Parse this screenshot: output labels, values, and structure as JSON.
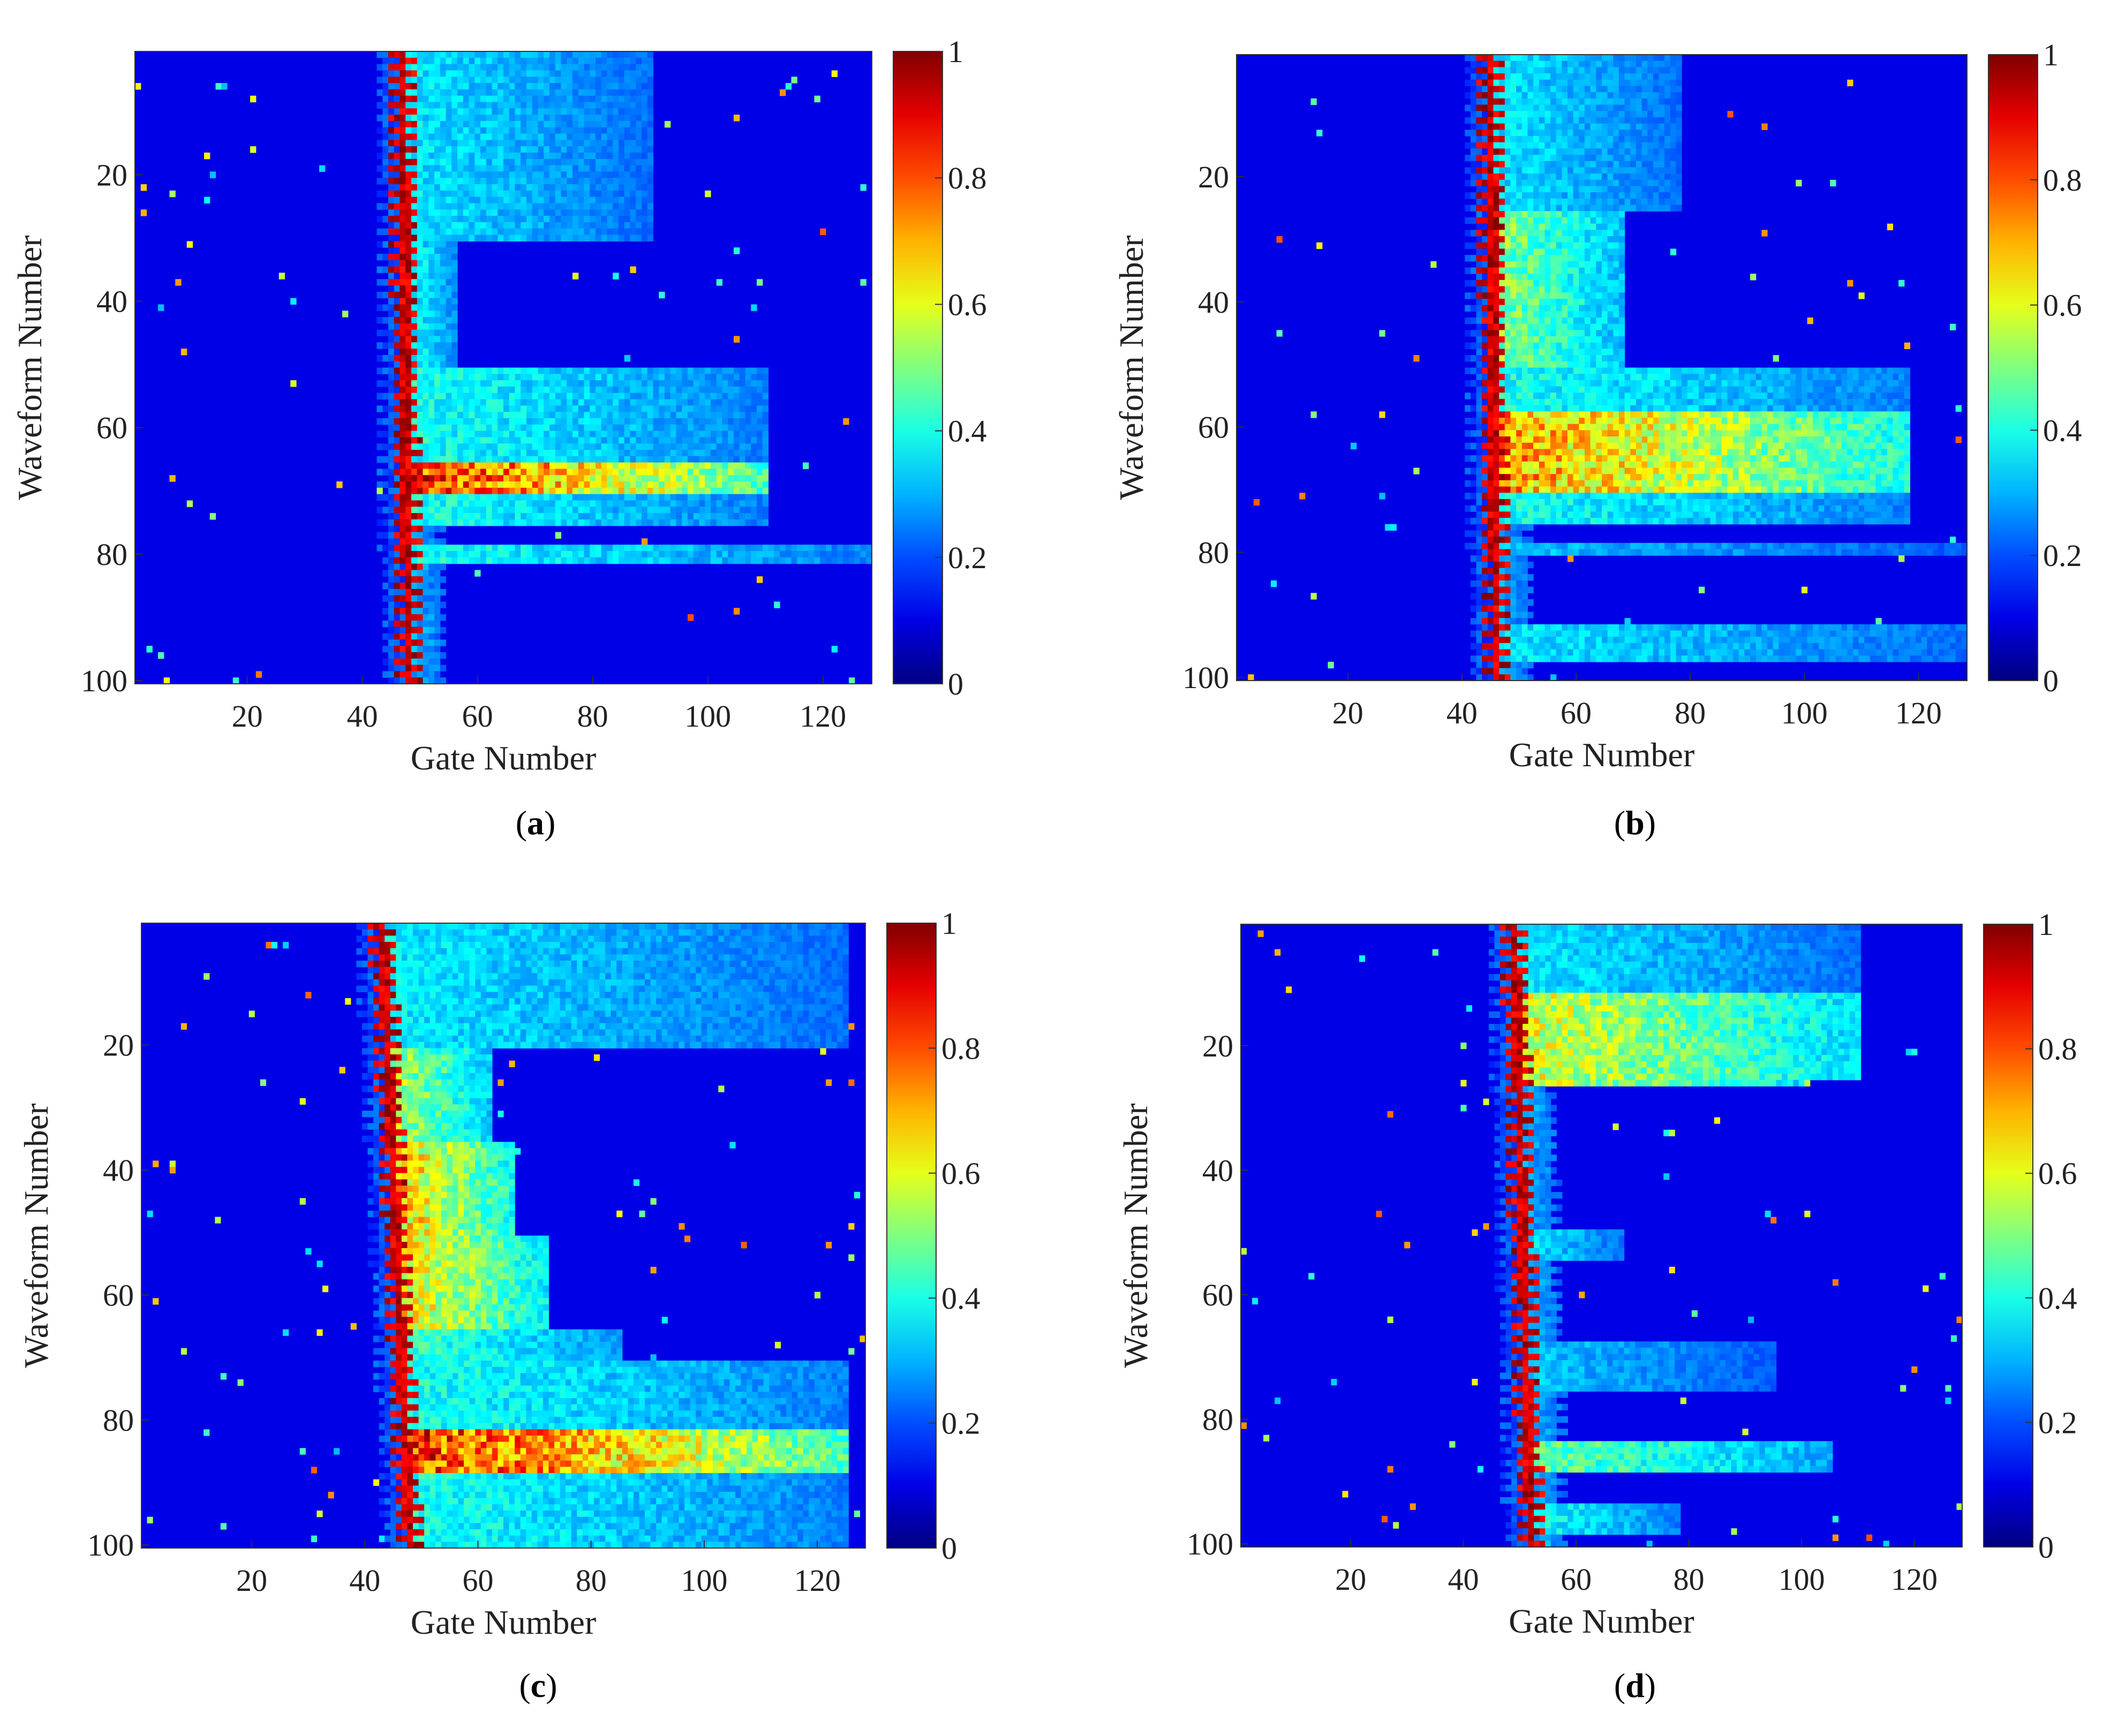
{
  "colormap": "jet",
  "colors": {
    "jet_low": "#00007f",
    "jet_mid": "#00ffff",
    "jet_high": "#7f0000"
  },
  "chart_data": [
    {
      "type": "heatmap",
      "panel_label": "a",
      "xlabel": "Gate Number",
      "ylabel": "Waveform Number",
      "xlim": [
        1,
        128
      ],
      "ylim": [
        1,
        100
      ],
      "y_axis_direction": "reversed",
      "x_ticks": [
        20,
        40,
        60,
        80,
        100,
        120
      ],
      "y_ticks": [
        20,
        40,
        60,
        80,
        100
      ],
      "colorbar": {
        "range": [
          0,
          1
        ],
        "ticks": [
          0,
          0.2,
          0.4,
          0.6,
          0.8,
          1
        ],
        "tick_labels": [
          "0",
          "0.2",
          "0.4",
          "0.6",
          "0.8",
          "1"
        ]
      },
      "grid": false,
      "peak_gate_start": 47,
      "peak_gate_end": 48,
      "bands": [
        {
          "from": 1,
          "to": 30,
          "tail_end_gate": 90,
          "tail_level": 0.3
        },
        {
          "from": 31,
          "to": 50,
          "tail_end_gate": 56,
          "tail_level": 0.35
        },
        {
          "from": 51,
          "to": 75,
          "tail_end_gate": 110,
          "tail_level": 0.35
        },
        {
          "from": 66,
          "to": 70,
          "tail_end_gate": 78,
          "tail_level": 0.9
        },
        {
          "from": 76,
          "to": 78,
          "tail_end_gate": 50,
          "tail_level": 0.2
        },
        {
          "from": 79,
          "to": 81,
          "tail_end_gate": 128,
          "tail_level": 0.35
        }
      ]
    },
    {
      "type": "heatmap",
      "panel_label": "b",
      "xlabel": "Gate Number",
      "ylabel": "Waveform Number",
      "xlim": [
        1,
        128
      ],
      "ylim": [
        1,
        100
      ],
      "y_axis_direction": "reversed",
      "x_ticks": [
        20,
        40,
        60,
        80,
        100,
        120
      ],
      "y_ticks": [
        20,
        40,
        60,
        80,
        100
      ],
      "colorbar": {
        "range": [
          0,
          1
        ],
        "ticks": [
          0,
          0.2,
          0.4,
          0.6,
          0.8,
          1
        ],
        "tick_labels": [
          "0",
          "0.2",
          "0.4",
          "0.6",
          "0.8",
          "1"
        ]
      },
      "grid": false,
      "peak_gate_start": 45,
      "peak_gate_end": 46,
      "bands": [
        {
          "from": 1,
          "to": 25,
          "tail_end_gate": 78,
          "tail_level": 0.3
        },
        {
          "from": 26,
          "to": 50,
          "tail_end_gate": 68,
          "tail_level": 0.5
        },
        {
          "from": 51,
          "to": 75,
          "tail_end_gate": 118,
          "tail_level": 0.35
        },
        {
          "from": 58,
          "to": 70,
          "tail_end_gate": 82,
          "tail_level": 0.75
        },
        {
          "from": 79,
          "to": 80,
          "tail_end_gate": 128,
          "tail_level": 0.25
        },
        {
          "from": 92,
          "to": 97,
          "tail_end_gate": 128,
          "tail_level": 0.3
        }
      ]
    },
    {
      "type": "heatmap",
      "panel_label": "c",
      "xlabel": "Gate Number",
      "ylabel": "Waveform Number",
      "xlim": [
        1,
        128
      ],
      "ylim": [
        1,
        100
      ],
      "y_axis_direction": "reversed",
      "x_ticks": [
        20,
        40,
        60,
        80,
        100,
        120
      ],
      "y_ticks": [
        20,
        40,
        60,
        80,
        100
      ],
      "colorbar": {
        "range": [
          0,
          1
        ],
        "ticks": [
          0,
          0.2,
          0.4,
          0.6,
          0.8,
          1
        ],
        "tick_labels": [
          "0",
          "0.2",
          "0.4",
          "0.6",
          "0.8",
          "1"
        ]
      },
      "grid": false,
      "peak_gate_start": 43,
      "peak_gate_end": 48,
      "bands": [
        {
          "from": 1,
          "to": 20,
          "tail_end_gate": 125,
          "tail_level": 0.3
        },
        {
          "from": 21,
          "to": 35,
          "tail_end_gate": 62,
          "tail_level": 0.55
        },
        {
          "from": 36,
          "to": 50,
          "tail_end_gate": 66,
          "tail_level": 0.7
        },
        {
          "from": 51,
          "to": 65,
          "tail_end_gate": 72,
          "tail_level": 0.65
        },
        {
          "from": 66,
          "to": 70,
          "tail_end_gate": 85,
          "tail_level": 0.4
        },
        {
          "from": 71,
          "to": 100,
          "tail_end_gate": 125,
          "tail_level": 0.35
        },
        {
          "from": 82,
          "to": 88,
          "tail_end_gate": 62,
          "tail_level": 0.9
        }
      ]
    },
    {
      "type": "heatmap",
      "panel_label": "d",
      "xlabel": "Gate Number",
      "ylabel": "Waveform Number",
      "xlim": [
        1,
        128
      ],
      "ylim": [
        1,
        100
      ],
      "y_axis_direction": "reversed",
      "x_ticks": [
        20,
        40,
        60,
        80,
        100,
        120
      ],
      "y_ticks": [
        20,
        40,
        60,
        80,
        100
      ],
      "colorbar": {
        "range": [
          0,
          1
        ],
        "ticks": [
          0,
          0.2,
          0.4,
          0.6,
          0.8,
          1
        ],
        "tick_labels": [
          "0",
          "0.2",
          "0.4",
          "0.6",
          "0.8",
          "1"
        ]
      },
      "grid": false,
      "peak_gate_start": 49,
      "peak_gate_end": 52,
      "bands": [
        {
          "from": 1,
          "to": 25,
          "tail_end_gate": 110,
          "tail_level": 0.3
        },
        {
          "from": 12,
          "to": 26,
          "tail_end_gate": 100,
          "tail_level": 0.6
        },
        {
          "from": 50,
          "to": 54,
          "tail_end_gate": 68,
          "tail_level": 0.3
        },
        {
          "from": 68,
          "to": 75,
          "tail_end_gate": 95,
          "tail_level": 0.25
        },
        {
          "from": 84,
          "to": 88,
          "tail_end_gate": 105,
          "tail_level": 0.45
        },
        {
          "from": 94,
          "to": 98,
          "tail_end_gate": 78,
          "tail_level": 0.35
        }
      ]
    }
  ]
}
